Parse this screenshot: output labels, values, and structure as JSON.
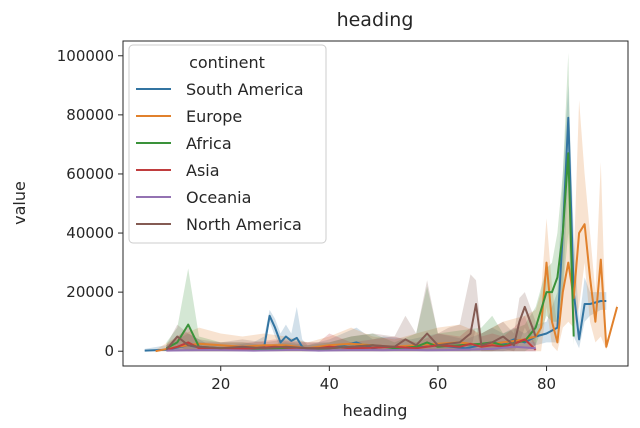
{
  "chart_data": {
    "type": "line",
    "title": "heading",
    "xlabel": "heading",
    "ylabel": "value",
    "xlim": [
      2,
      95
    ],
    "ylim": [
      -5000,
      105000
    ],
    "x_ticks": [
      20,
      40,
      60,
      80
    ],
    "y_ticks": [
      0,
      20000,
      40000,
      60000,
      80000,
      100000
    ],
    "x_tick_labels": [
      "20",
      "40",
      "60",
      "80"
    ],
    "y_tick_labels": [
      "0",
      "20000",
      "40000",
      "60000",
      "80000",
      "100000"
    ],
    "grid": false,
    "legend": {
      "title": "continent",
      "placement": "top-left"
    },
    "series": [
      {
        "name": "South America",
        "color": "#3274a1",
        "x": [
          6,
          10,
          14,
          18,
          22,
          26,
          28,
          29,
          30,
          31,
          32,
          33,
          34,
          35,
          36,
          40,
          45,
          48,
          50,
          55,
          60,
          65,
          68,
          70,
          72,
          74,
          76,
          78,
          80,
          82,
          83,
          84,
          85,
          86,
          87,
          88,
          90,
          91
        ],
        "y": [
          200,
          500,
          2000,
          500,
          500,
          1000,
          1500,
          12000,
          8000,
          3000,
          5000,
          3500,
          4500,
          1500,
          500,
          1000,
          3000,
          1000,
          1500,
          1000,
          2000,
          1000,
          2000,
          3000,
          2500,
          4000,
          3000,
          5000,
          6000,
          8000,
          40000,
          79000,
          20000,
          4000,
          16000,
          16000,
          17000,
          17000
        ],
        "band_upper": [
          800,
          2000,
          6000,
          2000,
          2000,
          3000,
          5000,
          14000,
          11000,
          6000,
          9000,
          6000,
          15000,
          4000,
          2000,
          4000,
          8000,
          4000,
          5000,
          4000,
          6000,
          4000,
          6000,
          8000,
          6000,
          8000,
          6000,
          9000,
          10000,
          20000,
          60000,
          90000,
          40000,
          10000,
          25000,
          20000,
          20000,
          20000
        ],
        "band_lower": [
          0,
          0,
          0,
          0,
          0,
          0,
          0,
          10000,
          5000,
          1000,
          2000,
          1000,
          1000,
          0,
          0,
          0,
          0,
          0,
          0,
          0,
          0,
          0,
          0,
          0,
          0,
          1000,
          1000,
          2000,
          3000,
          3000,
          20000,
          60000,
          5000,
          1000,
          10000,
          12000,
          14000,
          14000
        ]
      },
      {
        "name": "Europe",
        "color": "#e1812c",
        "x": [
          8,
          12,
          16,
          20,
          24,
          28,
          32,
          36,
          40,
          44,
          48,
          52,
          56,
          60,
          64,
          68,
          72,
          76,
          78,
          79,
          80,
          81,
          82,
          83,
          84,
          85,
          86,
          87,
          88,
          89,
          90,
          91,
          93
        ],
        "y": [
          0,
          1500,
          2500,
          2000,
          1500,
          2000,
          2000,
          1000,
          2000,
          2500,
          2000,
          1500,
          2000,
          2500,
          3000,
          2000,
          3000,
          4000,
          5000,
          8000,
          30000,
          10000,
          3000,
          20000,
          30000,
          18000,
          40000,
          43000,
          25000,
          10000,
          31000,
          1500,
          15000
        ],
        "band_upper": [
          500,
          5000,
          8000,
          6000,
          5000,
          6000,
          5000,
          3000,
          5000,
          8000,
          5000,
          4000,
          6000,
          8000,
          9000,
          6000,
          10000,
          12000,
          14000,
          20000,
          45000,
          22000,
          8000,
          35000,
          60000,
          30000,
          85000,
          60000,
          40000,
          20000,
          64000,
          3000,
          16000
        ],
        "band_lower": [
          0,
          0,
          0,
          0,
          0,
          0,
          0,
          0,
          0,
          0,
          0,
          0,
          0,
          0,
          0,
          0,
          0,
          0,
          0,
          0,
          15000,
          2000,
          0,
          8000,
          10000,
          8000,
          15000,
          30000,
          10000,
          3000,
          5000,
          500,
          14000
        ]
      },
      {
        "name": "Africa",
        "color": "#3a923a",
        "x": [
          10,
          12,
          14,
          16,
          20,
          24,
          28,
          32,
          36,
          40,
          44,
          48,
          52,
          56,
          58,
          60,
          64,
          68,
          70,
          72,
          76,
          78,
          80,
          81,
          82,
          83,
          84,
          85
        ],
        "y": [
          1000,
          3000,
          9000,
          1500,
          1000,
          1000,
          500,
          1000,
          500,
          1000,
          1500,
          2000,
          1000,
          1500,
          3000,
          1500,
          2000,
          2500,
          3000,
          2000,
          3500,
          8000,
          20000,
          20000,
          25000,
          40000,
          67000,
          5000
        ],
        "band_upper": [
          3000,
          8000,
          28000,
          5000,
          3000,
          3000,
          2000,
          3000,
          2000,
          3000,
          5000,
          6000,
          3000,
          6000,
          22000,
          6000,
          7000,
          8000,
          12000,
          6000,
          9000,
          15000,
          28000,
          30000,
          40000,
          60000,
          101000,
          10000
        ],
        "band_lower": [
          0,
          0,
          0,
          0,
          0,
          0,
          0,
          0,
          0,
          0,
          0,
          0,
          0,
          0,
          0,
          0,
          0,
          0,
          0,
          0,
          0,
          2000,
          12000,
          10000,
          10000,
          20000,
          40000,
          2000
        ]
      },
      {
        "name": "Asia",
        "color": "#c03d3e",
        "x": [
          10,
          12,
          14,
          16,
          18,
          22,
          26,
          30,
          34,
          38,
          40,
          44,
          48,
          52,
          56,
          60,
          64,
          66,
          68,
          70,
          72,
          74,
          76,
          78
        ],
        "y": [
          500,
          1500,
          3000,
          1000,
          1000,
          800,
          1000,
          1500,
          1000,
          1000,
          1500,
          1000,
          1200,
          1500,
          1000,
          2000,
          1500,
          2500,
          1500,
          2000,
          1500,
          2500,
          4000,
          500
        ],
        "band_upper": [
          2000,
          5000,
          8000,
          3000,
          3000,
          3000,
          3000,
          4000,
          3000,
          3000,
          6000,
          3000,
          4000,
          5000,
          3000,
          6000,
          5000,
          8000,
          5000,
          6000,
          5000,
          8000,
          12000,
          1500
        ],
        "band_lower": [
          0,
          0,
          0,
          0,
          0,
          0,
          0,
          0,
          0,
          0,
          0,
          0,
          0,
          0,
          0,
          0,
          0,
          0,
          0,
          0,
          0,
          0,
          0,
          0
        ]
      },
      {
        "name": "Oceania",
        "color": "#9372b2",
        "x": [
          10,
          14,
          18,
          22,
          26,
          30,
          34,
          38,
          42,
          46,
          50,
          54,
          58,
          62,
          66,
          70,
          74,
          78
        ],
        "y": [
          200,
          300,
          400,
          300,
          200,
          300,
          500,
          200,
          300,
          400,
          300,
          500,
          300,
          400,
          600,
          800,
          1500,
          1000
        ],
        "band_upper": [
          1000,
          1500,
          1500,
          1000,
          1000,
          1500,
          2000,
          1000,
          1500,
          1500,
          1000,
          2000,
          1500,
          1500,
          2500,
          3000,
          4000,
          3000
        ],
        "band_lower": [
          0,
          0,
          0,
          0,
          0,
          0,
          0,
          0,
          0,
          0,
          0,
          0,
          0,
          0,
          0,
          0,
          0,
          0
        ]
      },
      {
        "name": "North America",
        "color": "#845b53",
        "x": [
          10,
          12,
          14,
          16,
          20,
          24,
          28,
          32,
          36,
          40,
          44,
          48,
          52,
          54,
          56,
          58,
          60,
          62,
          64,
          66,
          67,
          68,
          70,
          72,
          74,
          75,
          76,
          78
        ],
        "y": [
          500,
          5000,
          2000,
          1500,
          1000,
          1500,
          1000,
          1500,
          1000,
          1000,
          1500,
          2000,
          1500,
          4000,
          2000,
          6000,
          2000,
          2500,
          3000,
          6000,
          16000,
          2000,
          3000,
          5000,
          2000,
          10000,
          15000,
          5000
        ],
        "band_upper": [
          2000,
          9000,
          6000,
          4000,
          3000,
          4000,
          3000,
          4000,
          3000,
          3000,
          5000,
          6000,
          5000,
          12000,
          6000,
          24000,
          6000,
          8000,
          9000,
          26000,
          24000,
          6000,
          8000,
          10000,
          6000,
          18000,
          20000,
          10000
        ],
        "band_lower": [
          0,
          2000,
          0,
          0,
          0,
          0,
          0,
          0,
          0,
          0,
          0,
          0,
          0,
          0,
          0,
          0,
          0,
          0,
          0,
          0,
          8000,
          0,
          0,
          1000,
          0,
          3000,
          8000,
          1000
        ]
      }
    ]
  }
}
